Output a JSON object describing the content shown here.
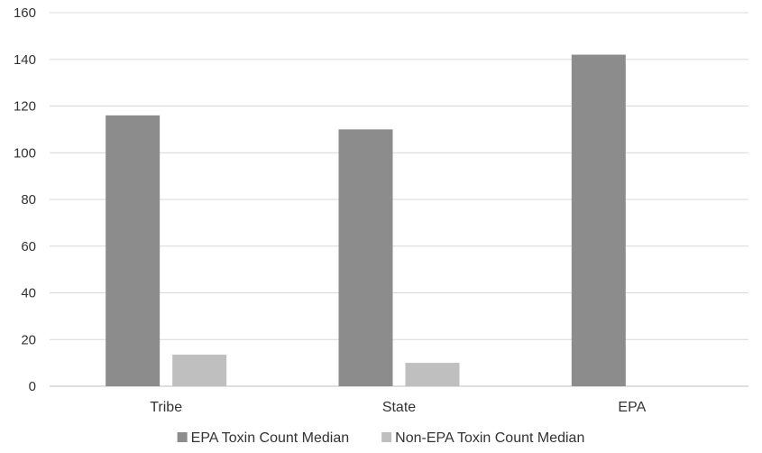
{
  "chart_data": {
    "type": "bar",
    "title": "",
    "xlabel": "",
    "ylabel": "",
    "categories": [
      "Tribe",
      "State",
      "EPA"
    ],
    "ylim": [
      0,
      160
    ],
    "yticks": [
      0,
      20,
      40,
      60,
      80,
      100,
      120,
      140,
      160
    ],
    "grid": true,
    "legend_position": "bottom-center",
    "series": [
      {
        "name": "EPA Toxin Count Median",
        "color": "#8c8c8c",
        "values": [
          116,
          110,
          142
        ]
      },
      {
        "name": "Non-EPA Toxin Count Median",
        "color": "#bfbfbf",
        "values": [
          13.5,
          10,
          null
        ]
      }
    ]
  }
}
